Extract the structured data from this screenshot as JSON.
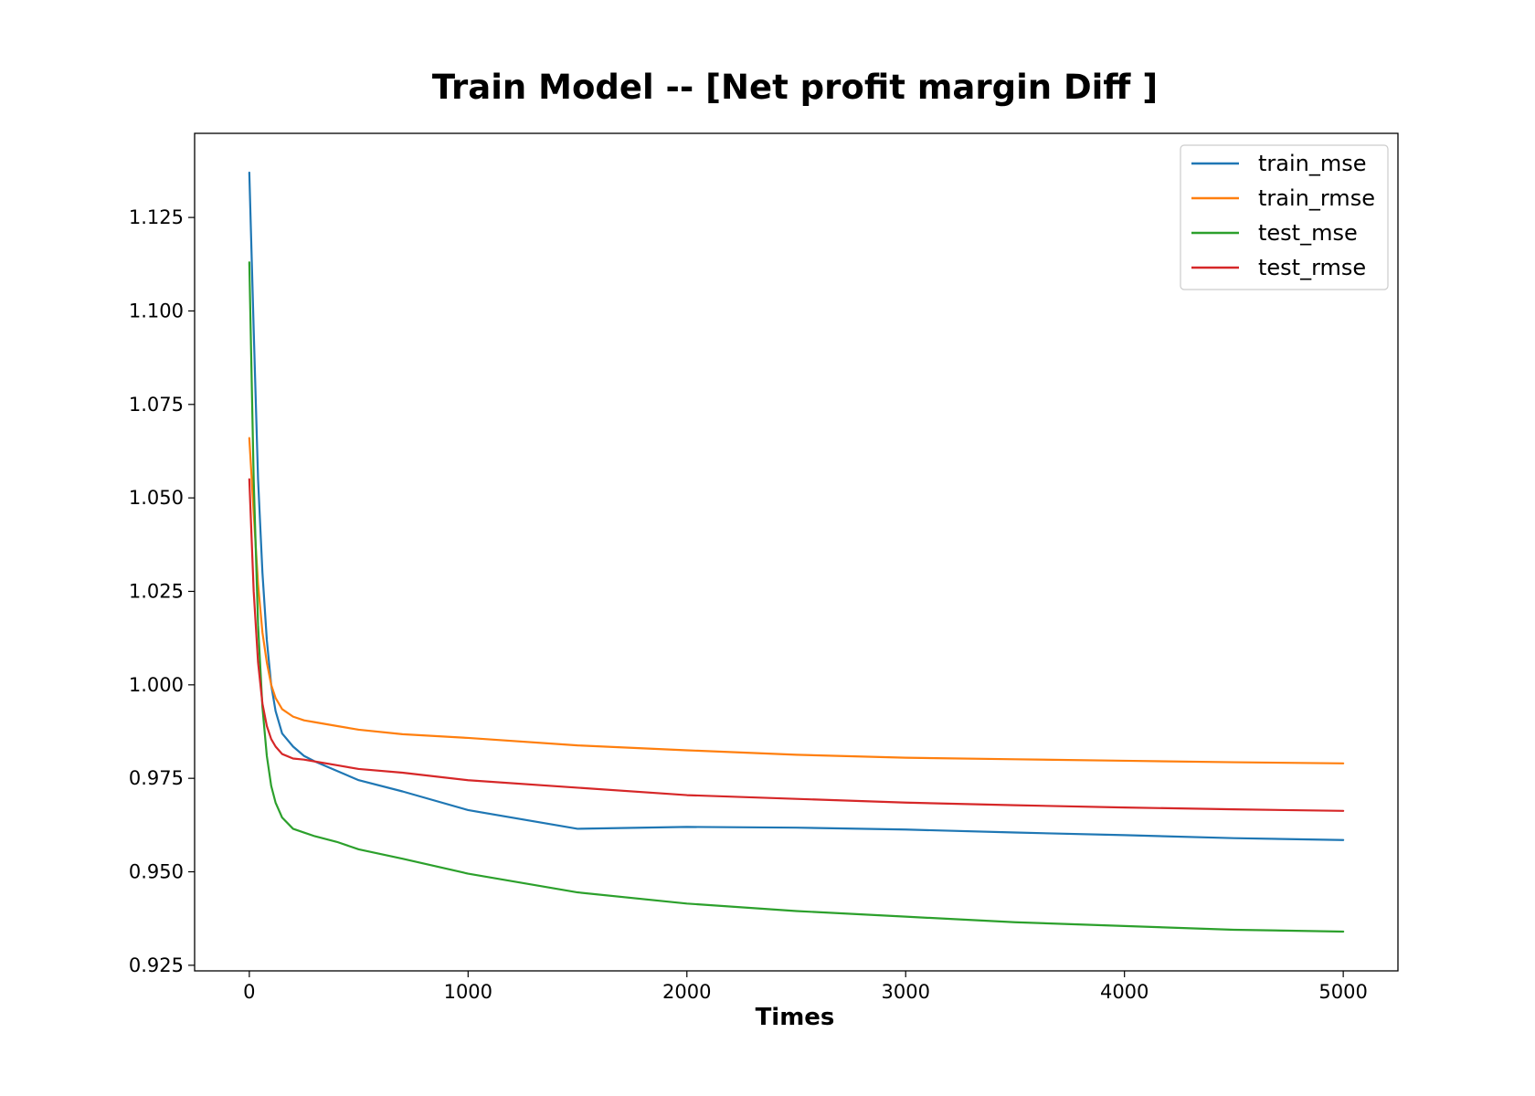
{
  "chart_data": {
    "type": "line",
    "title": "Train Model -- [Net profit margin Diff ]",
    "xlabel": "Times",
    "ylabel": "",
    "xlim": [
      -250,
      5250
    ],
    "ylim": [
      0.9235,
      1.1475
    ],
    "xticks": [
      0,
      1000,
      2000,
      3000,
      4000,
      5000
    ],
    "xtick_labels": [
      "0",
      "1000",
      "2000",
      "3000",
      "4000",
      "5000"
    ],
    "yticks": [
      0.925,
      0.95,
      0.975,
      1.0,
      1.025,
      1.05,
      1.075,
      1.1,
      1.125
    ],
    "ytick_labels": [
      "0.925",
      "0.950",
      "0.975",
      "1.000",
      "1.025",
      "1.050",
      "1.075",
      "1.100",
      "1.125"
    ],
    "grid": false,
    "legend_position": "top-right",
    "series": [
      {
        "name": "train_mse",
        "color": "#1f77b4",
        "x": [
          0,
          20,
          40,
          60,
          80,
          100,
          120,
          150,
          200,
          250,
          300,
          400,
          500,
          700,
          1000,
          1500,
          2000,
          2500,
          3000,
          3500,
          4000,
          4500,
          5000
        ],
        "y": [
          1.137,
          1.095,
          1.055,
          1.03,
          1.012,
          1.0,
          0.993,
          0.987,
          0.9835,
          0.981,
          0.9795,
          0.977,
          0.9745,
          0.9715,
          0.9665,
          0.9615,
          0.962,
          0.9618,
          0.9613,
          0.9605,
          0.9598,
          0.959,
          0.9585
        ]
      },
      {
        "name": "train_rmse",
        "color": "#ff7f0e",
        "x": [
          0,
          20,
          40,
          60,
          80,
          100,
          120,
          150,
          200,
          250,
          300,
          400,
          500,
          700,
          1000,
          1500,
          2000,
          2500,
          3000,
          3500,
          4000,
          4500,
          5000
        ],
        "y": [
          1.066,
          1.046,
          1.027,
          1.014,
          1.006,
          1.0,
          0.9965,
          0.9935,
          0.9915,
          0.9905,
          0.99,
          0.989,
          0.988,
          0.9868,
          0.9858,
          0.9838,
          0.9825,
          0.9813,
          0.9805,
          0.9801,
          0.9797,
          0.9793,
          0.979
        ]
      },
      {
        "name": "test_mse",
        "color": "#2ca02c",
        "x": [
          0,
          20,
          40,
          60,
          80,
          100,
          120,
          150,
          200,
          250,
          300,
          400,
          500,
          700,
          1000,
          1500,
          2000,
          2500,
          3000,
          3500,
          4000,
          4500,
          5000
        ],
        "y": [
          1.113,
          1.055,
          1.016,
          0.994,
          0.981,
          0.973,
          0.9685,
          0.9645,
          0.9615,
          0.9605,
          0.9595,
          0.958,
          0.956,
          0.9535,
          0.9495,
          0.9445,
          0.9415,
          0.9395,
          0.938,
          0.9365,
          0.9355,
          0.9345,
          0.934
        ]
      },
      {
        "name": "test_rmse",
        "color": "#d62728",
        "x": [
          0,
          20,
          40,
          60,
          80,
          100,
          120,
          150,
          200,
          250,
          300,
          400,
          500,
          700,
          1000,
          1500,
          2000,
          2500,
          3000,
          3500,
          4000,
          4500,
          5000
        ],
        "y": [
          1.055,
          1.025,
          1.006,
          0.995,
          0.989,
          0.9855,
          0.9835,
          0.9815,
          0.9803,
          0.98,
          0.9795,
          0.9785,
          0.9775,
          0.9765,
          0.9745,
          0.9725,
          0.9705,
          0.9695,
          0.9685,
          0.9678,
          0.9672,
          0.9667,
          0.9663
        ]
      }
    ]
  }
}
